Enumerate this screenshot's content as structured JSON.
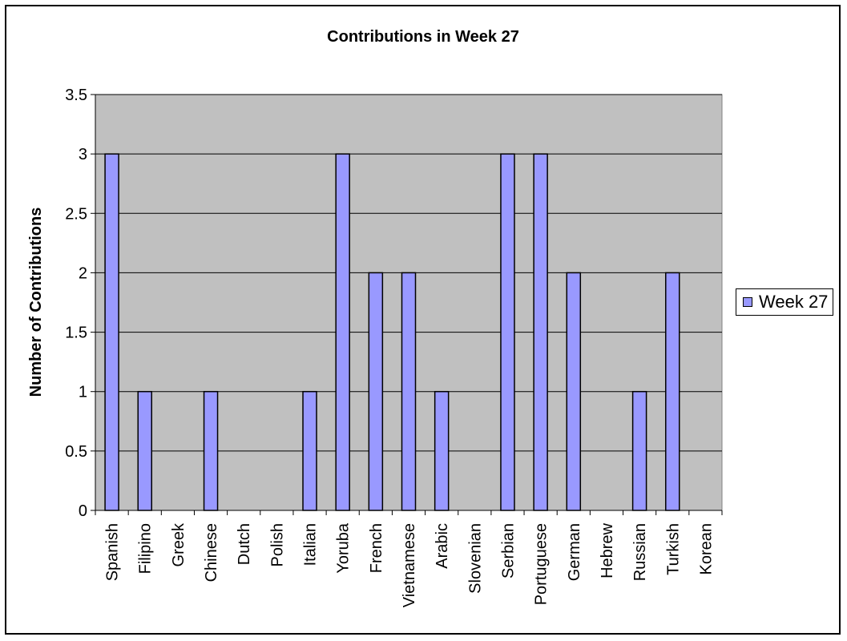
{
  "chart_data": {
    "type": "bar",
    "title": "Contributions in Week 27",
    "xlabel": "",
    "ylabel": "Number of Contributions",
    "ylim": [
      0,
      3.5
    ],
    "yticks": [
      "0",
      "0.5",
      "1",
      "1.5",
      "2",
      "2.5",
      "3",
      "3.5"
    ],
    "categories": [
      "Spanish",
      "Filipino",
      "Greek",
      "Chinese",
      "Dutch",
      "Polish",
      "Italian",
      "Yoruba",
      "French",
      "Vietnamese",
      "Arabic",
      "Slovenian",
      "Serbian",
      "Portuguese",
      "German",
      "Hebrew",
      "Russian",
      "Turkish",
      "Korean"
    ],
    "series": [
      {
        "name": "Week 27",
        "values": [
          3,
          1,
          0,
          1,
          0,
          0,
          1,
          3,
          2,
          2,
          1,
          0,
          3,
          3,
          2,
          0,
          1,
          2,
          0
        ]
      }
    ],
    "grid": true,
    "legend": "right",
    "colors": {
      "plot_background": "#c0c0c0",
      "bar_fill": "#9999ff",
      "bar_stroke": "#000000",
      "gridline": "#000000"
    }
  }
}
